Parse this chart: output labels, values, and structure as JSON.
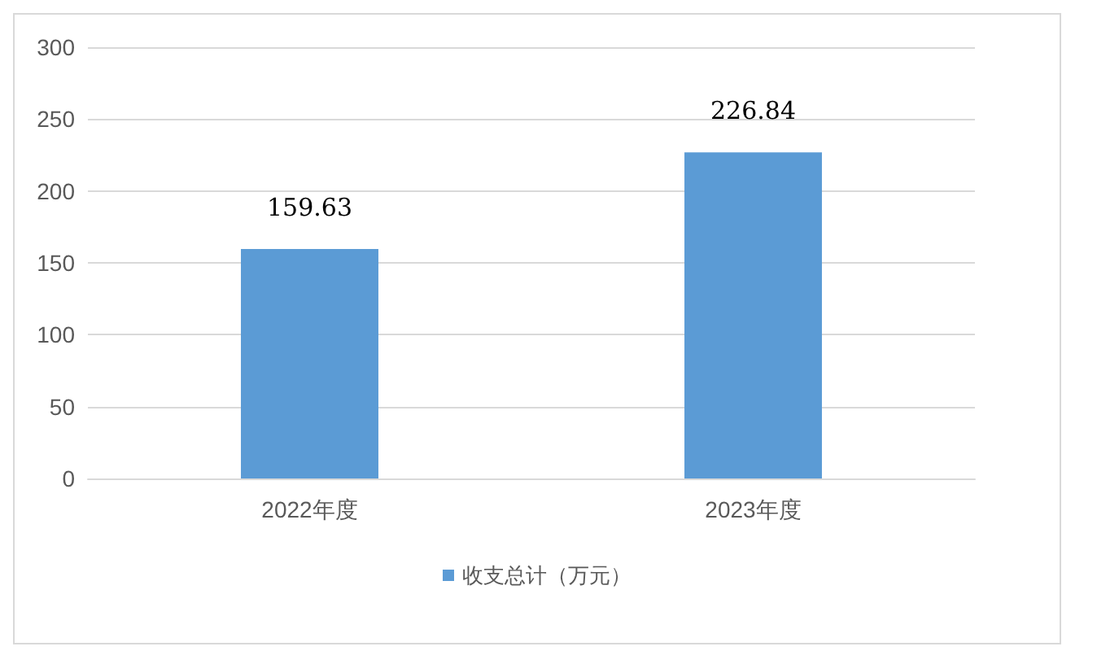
{
  "chart_data": {
    "type": "bar",
    "categories": [
      "2022年度",
      "2023年度"
    ],
    "series": [
      {
        "name": "收支总计（万元）",
        "color": "#5b9bd5",
        "values": [
          159.63,
          226.84
        ]
      }
    ],
    "ylim": [
      0,
      300
    ],
    "yticks": [
      0,
      50,
      100,
      150,
      200,
      250,
      300
    ],
    "grid": "y",
    "legend": "bottom",
    "data_labels": true
  }
}
